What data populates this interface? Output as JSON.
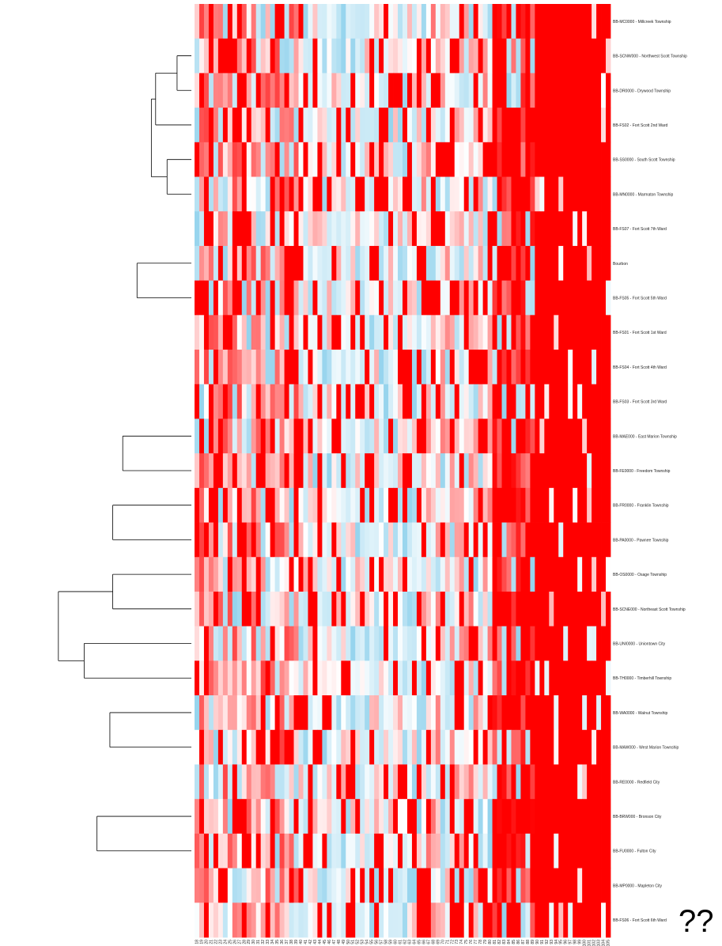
{
  "chart_data": {
    "type": "heatmap",
    "title": "",
    "colors": {
      "low": "#87ceeb",
      "mid": "#ffffff",
      "high": "#ff0000",
      "dendrogram": "#000000"
    },
    "rows": [
      "BB-MC0000 - Millcreek Township",
      "BB-SCNW000 - Northwest Scott Township",
      "BB-DR0000 - Drywood Township",
      "BB-FS02 - Fort Scott 2nd Ward",
      "BB-SS0000 - South Scott Township",
      "BB-MN0000 - Marmaton Township",
      "BB-FS07 - Fort Scott 7th Ward",
      "Bourbon",
      "BB-FS05 - Fort Scott 5th Ward",
      "BB-FS01 - Fort Scott 1st Ward",
      "BB-FS04 - Fort Scott 4th Ward",
      "BB-FS03 - Fort Scott 3rd Ward",
      "BB-MAE000 - East Marion Township",
      "BB-FE0000 - Freedom Township",
      "BB-FR0000 - Franklin Township",
      "BB-PA0000 - Pawnee Township",
      "BB-OS0000 - Osage Township",
      "BB-SCNE000 - Northeast Scott Township",
      "BB-UNI0000 - Uniontown City",
      "BB-TH0000 - Timberhill Township",
      "BB-WA0000 - Walnut Township",
      "BB-MAW000 - West Marion Township",
      "BB-RE0000 - Redfield City",
      "BB-BRW000 - Bronson City",
      "BB-FU0000 - Fulton City",
      "BB-MP0000 - Mapleton City",
      "BB-FS06 - Fort Scott 6th Ward"
    ],
    "columns": [
      "18",
      "19",
      "20",
      "21",
      "22",
      "23",
      "24",
      "25",
      "26",
      "27",
      "28",
      "29",
      "30",
      "31",
      "32",
      "33",
      "34",
      "35",
      "36",
      "37",
      "38",
      "39",
      "40",
      "41",
      "42",
      "43",
      "44",
      "45",
      "46",
      "47",
      "48",
      "49",
      "50",
      "51",
      "52",
      "53",
      "54",
      "55",
      "56",
      "57",
      "58",
      "59",
      "60",
      "61",
      "62",
      "63",
      "64",
      "65",
      "66",
      "67",
      "68",
      "69",
      "70",
      "71",
      "72",
      "73",
      "74",
      "75",
      "76",
      "77",
      "78",
      "79",
      "80",
      "81",
      "82",
      "83",
      "84",
      "85",
      "86",
      "87",
      "88",
      "89",
      "90",
      "91",
      "92",
      "93",
      "94",
      "95",
      "96",
      "97",
      "98",
      "99",
      "100",
      "101",
      "102",
      "103",
      "104",
      "105"
    ],
    "red_fraction": [
      0.73,
      0.68,
      0.65,
      0.7,
      0.62,
      0.66,
      0.63,
      0.67,
      0.71,
      0.6,
      0.64,
      0.69,
      0.61,
      0.58,
      0.57,
      0.62,
      0.59,
      0.56,
      0.6,
      0.58,
      0.57,
      0.72,
      0.66,
      0.55,
      0.6,
      0.63,
      0.8
    ],
    "dendrogram_merges": [
      [
        1,
        2,
        0.1
      ],
      [
        0,
        28,
        0.15
      ],
      [
        4,
        5,
        0.17
      ],
      [
        6,
        30,
        0.2
      ],
      [
        27,
        3,
        0.25
      ],
      [
        29,
        31,
        0.28
      ],
      [
        32,
        34,
        0.34
      ],
      [
        7,
        8,
        0.38
      ],
      [
        36,
        9,
        0.4
      ],
      [
        37,
        10,
        0.45
      ],
      [
        38,
        11,
        0.52
      ],
      [
        33,
        39,
        0.58
      ],
      [
        14,
        15,
        0.55
      ],
      [
        16,
        17,
        0.55
      ],
      [
        12,
        13,
        0.48
      ],
      [
        41,
        42,
        0.7
      ],
      [
        43,
        44,
        0.77
      ],
      [
        20,
        21,
        0.57
      ],
      [
        18,
        19,
        0.75
      ],
      [
        23,
        24,
        0.66
      ],
      [
        22,
        48,
        0.86
      ],
      [
        47,
        49,
        0.79
      ],
      [
        25,
        50,
        0.92
      ],
      [
        40,
        45,
        0.93
      ],
      [
        46,
        51,
        0.97
      ],
      [
        52,
        53,
        1.05
      ],
      [
        26,
        54,
        1.2
      ]
    ],
    "annotation": "??"
  }
}
